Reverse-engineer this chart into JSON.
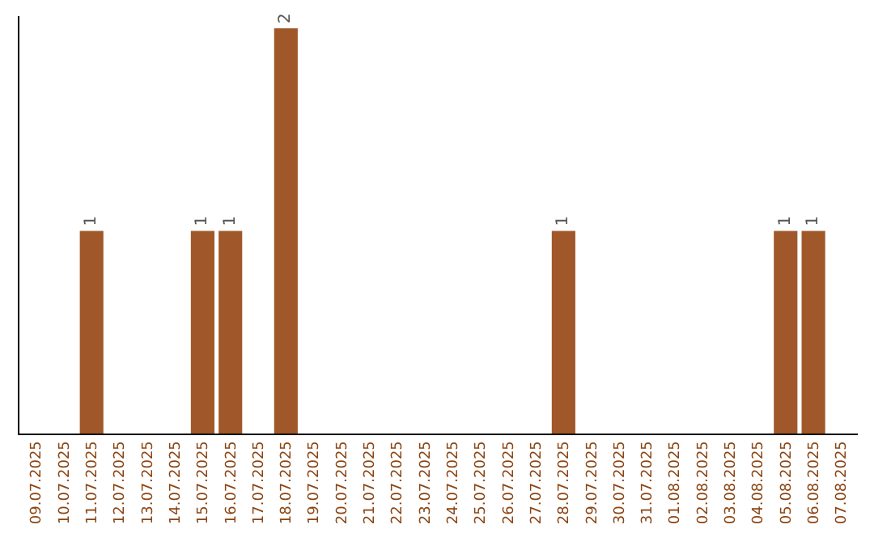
{
  "chart_data": {
    "type": "bar",
    "categories": [
      "09.07.2025",
      "10.07.2025",
      "11.07.2025",
      "12.07.2025",
      "13.07.2025",
      "14.07.2025",
      "15.07.2025",
      "16.07.2025",
      "17.07.2025",
      "18.07.2025",
      "19.07.2025",
      "20.07.2025",
      "21.07.2025",
      "22.07.2025",
      "23.07.2025",
      "24.07.2025",
      "25.07.2025",
      "26.07.2025",
      "27.07.2025",
      "28.07.2025",
      "29.07.2025",
      "30.07.2025",
      "31.07.2025",
      "01.08.2025",
      "02.08.2025",
      "03.08.2025",
      "04.08.2025",
      "05.08.2025",
      "06.08.2025",
      "07.08.2025"
    ],
    "values": [
      0,
      0,
      1,
      0,
      0,
      0,
      1,
      1,
      0,
      2,
      0,
      0,
      0,
      0,
      0,
      0,
      0,
      0,
      0,
      1,
      0,
      0,
      0,
      0,
      0,
      0,
      0,
      1,
      1,
      0
    ],
    "value_labels": [
      null,
      null,
      "1",
      null,
      null,
      null,
      "1",
      "1",
      null,
      "2",
      null,
      null,
      null,
      null,
      null,
      null,
      null,
      null,
      null,
      "1",
      null,
      null,
      null,
      null,
      null,
      null,
      null,
      "1",
      "1",
      null
    ],
    "color": "#a0582a",
    "tick_labels": "x"
  }
}
